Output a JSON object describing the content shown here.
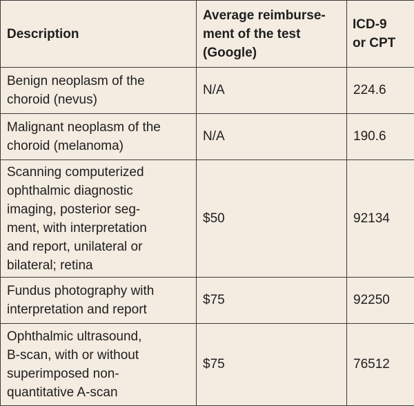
{
  "table": {
    "header": [
      [
        "Description"
      ],
      [
        "Average reimburse-",
        "ment of the test",
        "(Google)"
      ],
      [
        "ICD-9",
        "or CPT"
      ]
    ],
    "rows": [
      [
        [
          "Benign neoplasm of the",
          "choroid (nevus)"
        ],
        [
          "N/A"
        ],
        [
          "224.6"
        ]
      ],
      [
        [
          "Malignant neoplasm of the",
          "choroid (melanoma)"
        ],
        [
          "N/A"
        ],
        [
          "190.6"
        ]
      ],
      [
        [
          "Scanning computerized",
          "ophthalmic diagnostic",
          "imaging, posterior seg-",
          "ment, with interpretation",
          "and report, unilateral or",
          "bilateral; retina"
        ],
        [
          "$50"
        ],
        [
          "92134"
        ]
      ],
      [
        [
          "Fundus photography with",
          "interpretation and report"
        ],
        [
          "$75"
        ],
        [
          "92250"
        ]
      ],
      [
        [
          "Ophthalmic ultrasound,",
          "B-scan, with or without",
          "superimposed non-",
          "quantitative A-scan"
        ],
        [
          "$75"
        ],
        [
          "76512"
        ]
      ]
    ]
  }
}
